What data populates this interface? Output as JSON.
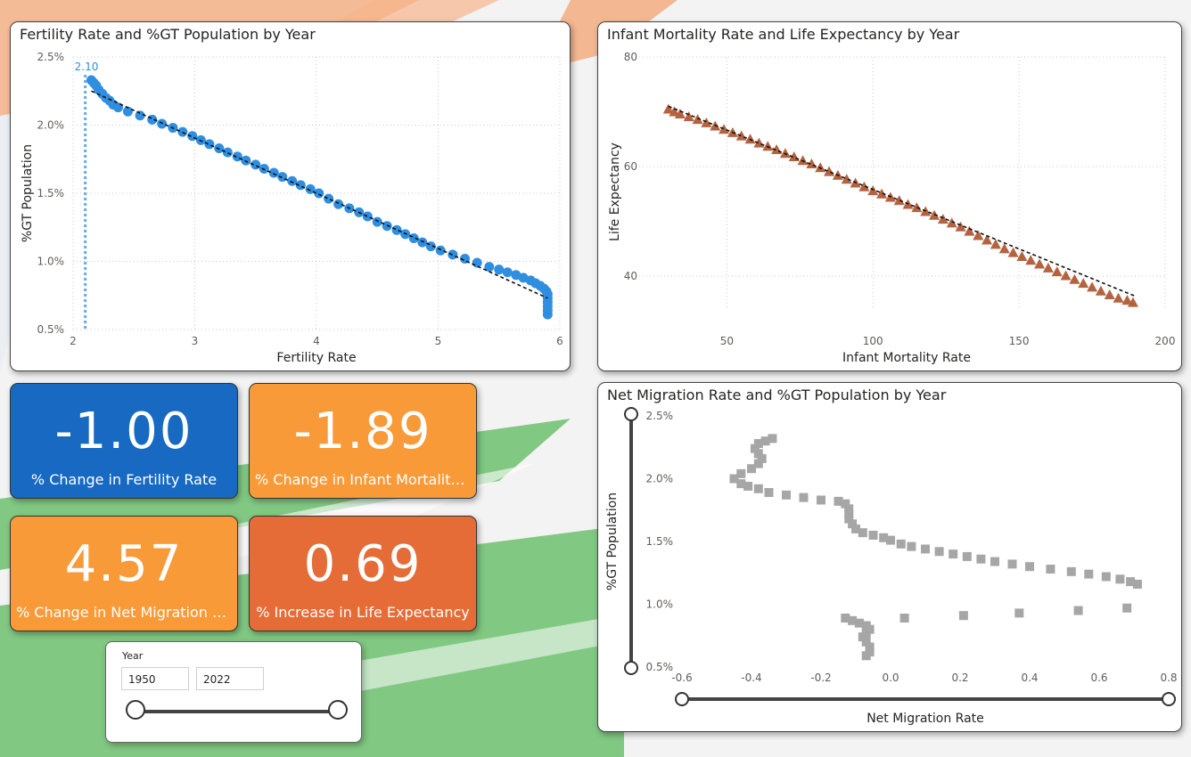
{
  "colors": {
    "blue_card": "#1769c2",
    "orange_card": "#f99a38",
    "red_card": "#e56c36",
    "fertility_points": "#2f8ee0",
    "mortality_points": "#b4623f",
    "migration_points": "#a6a6a6"
  },
  "cards": [
    {
      "value": "-1.00",
      "label": "% Change in Fertility Rate"
    },
    {
      "value": "-1.89",
      "label": "% Change in Infant Mortality ..."
    },
    {
      "value": "4.57",
      "label": "% Change in Net Migration Ra..."
    },
    {
      "value": "0.69",
      "label": "% Increase in Life Expectancy"
    }
  ],
  "slicer": {
    "title": "Year",
    "start": "1950",
    "end": "2022",
    "range_selected": [
      0,
      1
    ]
  },
  "charts": {
    "fertility": {
      "title": "Fertility Rate and %GT Population by Year",
      "type": "scatter",
      "xlabel": "Fertility Rate",
      "ylabel": "%GT Population",
      "xlim": [
        2,
        6
      ],
      "ylim": [
        0.5,
        2.5
      ],
      "xticks": [
        "2",
        "3",
        "4",
        "5",
        "6"
      ],
      "yticks": [
        "0.5%",
        "1.0%",
        "1.5%",
        "2.0%",
        "2.5%"
      ],
      "reference_line": {
        "x": 2.1,
        "label": "2.10"
      },
      "trend": [
        [
          2.15,
          2.25
        ],
        [
          5.9,
          0.73
        ]
      ],
      "points": [
        [
          2.15,
          2.33
        ],
        [
          2.17,
          2.31
        ],
        [
          2.19,
          2.29
        ],
        [
          2.21,
          2.26
        ],
        [
          2.24,
          2.23
        ],
        [
          2.27,
          2.2
        ],
        [
          2.3,
          2.18
        ],
        [
          2.33,
          2.15
        ],
        [
          2.37,
          2.13
        ],
        [
          2.45,
          2.1
        ],
        [
          2.55,
          2.07
        ],
        [
          2.65,
          2.04
        ],
        [
          2.73,
          2.01
        ],
        [
          2.82,
          1.98
        ],
        [
          2.9,
          1.95
        ],
        [
          2.98,
          1.92
        ],
        [
          3.05,
          1.89
        ],
        [
          3.12,
          1.86
        ],
        [
          3.2,
          1.83
        ],
        [
          3.27,
          1.8
        ],
        [
          3.35,
          1.77
        ],
        [
          3.42,
          1.74
        ],
        [
          3.5,
          1.71
        ],
        [
          3.57,
          1.68
        ],
        [
          3.65,
          1.65
        ],
        [
          3.72,
          1.62
        ],
        [
          3.8,
          1.59
        ],
        [
          3.87,
          1.56
        ],
        [
          3.95,
          1.53
        ],
        [
          4.02,
          1.5
        ],
        [
          4.1,
          1.46
        ],
        [
          4.18,
          1.42
        ],
        [
          4.27,
          1.39
        ],
        [
          4.35,
          1.36
        ],
        [
          4.42,
          1.33
        ],
        [
          4.5,
          1.29
        ],
        [
          4.58,
          1.26
        ],
        [
          4.66,
          1.23
        ],
        [
          4.73,
          1.2
        ],
        [
          4.8,
          1.17
        ],
        [
          4.87,
          1.14
        ],
        [
          4.94,
          1.11
        ],
        [
          5.02,
          1.08
        ],
        [
          5.12,
          1.05
        ],
        [
          5.22,
          1.02
        ],
        [
          5.32,
          0.99
        ],
        [
          5.42,
          0.96
        ],
        [
          5.5,
          0.94
        ],
        [
          5.57,
          0.92
        ],
        [
          5.64,
          0.9
        ],
        [
          5.7,
          0.88
        ],
        [
          5.76,
          0.86
        ],
        [
          5.8,
          0.84
        ],
        [
          5.84,
          0.82
        ],
        [
          5.87,
          0.8
        ],
        [
          5.89,
          0.78
        ],
        [
          5.9,
          0.76
        ],
        [
          5.9,
          0.73
        ],
        [
          5.9,
          0.7
        ],
        [
          5.9,
          0.67
        ],
        [
          5.9,
          0.64
        ],
        [
          5.9,
          0.61
        ]
      ]
    },
    "mortality": {
      "title": "Infant Mortality Rate and Life Expectancy by Year",
      "type": "scatter",
      "xlabel": "Infant Mortality Rate",
      "ylabel": "Life Expectancy",
      "xlim": [
        20,
        200
      ],
      "ylim": [
        34,
        80
      ],
      "xticks": [
        {
          "v": 50,
          "t": "50"
        },
        {
          "v": 100,
          "t": "100"
        },
        {
          "v": 150,
          "t": "150"
        },
        {
          "v": 200,
          "t": "200"
        }
      ],
      "yticks": [
        {
          "v": 40,
          "t": "40"
        },
        {
          "v": 60,
          "t": "60"
        },
        {
          "v": 80,
          "t": "80"
        }
      ],
      "trend": [
        [
          30,
          71
        ],
        [
          190,
          36.3
        ]
      ],
      "points": [
        [
          30,
          70.5
        ],
        [
          32,
          70
        ],
        [
          34,
          69.6
        ],
        [
          37,
          69.1
        ],
        [
          40,
          68.6
        ],
        [
          43,
          68
        ],
        [
          46,
          67.4
        ],
        [
          49,
          66.8
        ],
        [
          52,
          66.2
        ],
        [
          55,
          65.6
        ],
        [
          58,
          65
        ],
        [
          61,
          64.3
        ],
        [
          64,
          63.7
        ],
        [
          67,
          63.1
        ],
        [
          70,
          62.4
        ],
        [
          73,
          61.8
        ],
        [
          76,
          61.1
        ],
        [
          79,
          60.5
        ],
        [
          82,
          59.8
        ],
        [
          85,
          59.1
        ],
        [
          88,
          58.4
        ],
        [
          91,
          57.7
        ],
        [
          94,
          57
        ],
        [
          97,
          56.3
        ],
        [
          100,
          55.6
        ],
        [
          103,
          55
        ],
        [
          106,
          54.4
        ],
        [
          109,
          53.8
        ],
        [
          112,
          53.1
        ],
        [
          115,
          52.5
        ],
        [
          118,
          51.8
        ],
        [
          121,
          51.1
        ],
        [
          124,
          50.4
        ],
        [
          127,
          49.7
        ],
        [
          130,
          49
        ],
        [
          133,
          48.2
        ],
        [
          136,
          47.4
        ],
        [
          139,
          46.6
        ],
        [
          142,
          45.8
        ],
        [
          145,
          45
        ],
        [
          148,
          44.3
        ],
        [
          151,
          43.6
        ],
        [
          154,
          42.9
        ],
        [
          157,
          42.2
        ],
        [
          160,
          41.5
        ],
        [
          163,
          40.8
        ],
        [
          166,
          40.1
        ],
        [
          169,
          39.4
        ],
        [
          172,
          38.7
        ],
        [
          175,
          38
        ],
        [
          178,
          37.3
        ],
        [
          181,
          36.6
        ],
        [
          184,
          36
        ],
        [
          187,
          35.6
        ],
        [
          189,
          35.2
        ]
      ]
    },
    "migration": {
      "title": "Net Migration Rate and %GT Population by Year",
      "type": "scatter",
      "xlabel": "Net Migration Rate",
      "ylabel": "%GT Population",
      "xlim": [
        -0.6,
        0.8
      ],
      "ylim": [
        0.5,
        2.5
      ],
      "xticks": [
        {
          "v": -0.6,
          "t": "-0.6"
        },
        {
          "v": -0.4,
          "t": "-0.4"
        },
        {
          "v": -0.2,
          "t": "-0.2"
        },
        {
          "v": 0,
          "t": "0.0"
        },
        {
          "v": 0.2,
          "t": "0.2"
        },
        {
          "v": 0.4,
          "t": "0.4"
        },
        {
          "v": 0.6,
          "t": "0.6"
        },
        {
          "v": 0.8,
          "t": "0.8"
        }
      ],
      "yticks": [
        {
          "v": 0.5,
          "t": "0.5%"
        },
        {
          "v": 1.0,
          "t": "1.0%"
        },
        {
          "v": 1.5,
          "t": "1.5%"
        },
        {
          "v": 2.0,
          "t": "2.0%"
        },
        {
          "v": 2.5,
          "t": "2.5%"
        }
      ],
      "points": [
        [
          -0.34,
          2.32
        ],
        [
          -0.36,
          2.3
        ],
        [
          -0.38,
          2.28
        ],
        [
          -0.39,
          2.24
        ],
        [
          -0.38,
          2.2
        ],
        [
          -0.37,
          2.16
        ],
        [
          -0.38,
          2.12
        ],
        [
          -0.4,
          2.08
        ],
        [
          -0.43,
          2.04
        ],
        [
          -0.45,
          2
        ],
        [
          -0.43,
          1.96
        ],
        [
          -0.41,
          1.94
        ],
        [
          -0.38,
          1.92
        ],
        [
          -0.35,
          1.89
        ],
        [
          -0.3,
          1.87
        ],
        [
          -0.25,
          1.85
        ],
        [
          -0.2,
          1.83
        ],
        [
          -0.15,
          1.82
        ],
        [
          -0.13,
          1.8
        ],
        [
          -0.12,
          1.76
        ],
        [
          -0.12,
          1.72
        ],
        [
          -0.12,
          1.68
        ],
        [
          -0.11,
          1.64
        ],
        [
          -0.1,
          1.6
        ],
        [
          -0.08,
          1.57
        ],
        [
          -0.05,
          1.55
        ],
        [
          -0.02,
          1.53
        ],
        [
          0,
          1.51
        ],
        [
          0.03,
          1.48
        ],
        [
          0.06,
          1.46
        ],
        [
          0.1,
          1.44
        ],
        [
          0.14,
          1.42
        ],
        [
          0.18,
          1.4
        ],
        [
          0.22,
          1.38
        ],
        [
          0.26,
          1.36
        ],
        [
          0.3,
          1.34
        ],
        [
          0.35,
          1.32
        ],
        [
          0.4,
          1.3
        ],
        [
          0.46,
          1.28
        ],
        [
          0.52,
          1.26
        ],
        [
          0.57,
          1.24
        ],
        [
          0.62,
          1.22
        ],
        [
          0.66,
          1.2
        ],
        [
          0.69,
          1.18
        ],
        [
          0.71,
          1.16
        ],
        [
          0.04,
          0.89
        ],
        [
          0.21,
          0.91
        ],
        [
          0.37,
          0.93
        ],
        [
          0.54,
          0.95
        ],
        [
          0.68,
          0.97
        ],
        [
          -0.13,
          0.89
        ],
        [
          -0.11,
          0.87
        ],
        [
          -0.09,
          0.85
        ],
        [
          -0.07,
          0.83
        ],
        [
          -0.06,
          0.8
        ],
        [
          -0.07,
          0.77
        ],
        [
          -0.08,
          0.74
        ],
        [
          -0.07,
          0.7
        ],
        [
          -0.06,
          0.66
        ],
        [
          -0.06,
          0.62
        ],
        [
          -0.07,
          0.59
        ]
      ]
    }
  }
}
